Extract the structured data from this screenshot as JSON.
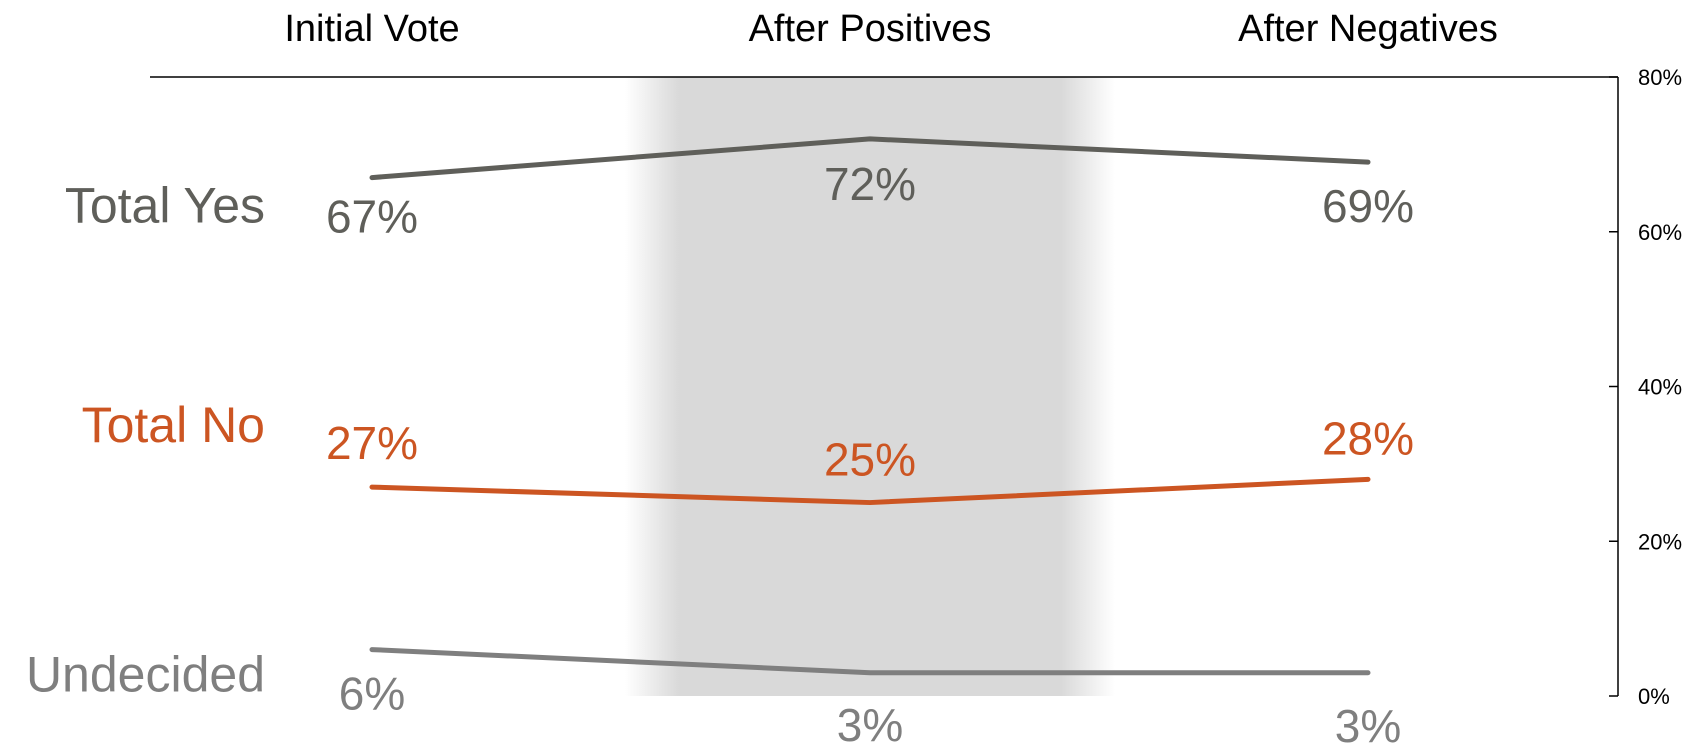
{
  "chart_data": {
    "type": "line",
    "categories": [
      "Initial Vote",
      "After Positives",
      "After Negatives"
    ],
    "ylim": [
      0,
      80
    ],
    "y_ticks": [
      0,
      20,
      40,
      60,
      80
    ],
    "y_tick_labels": [
      "0%",
      "20%",
      "40%",
      "60%",
      "80%"
    ],
    "y_axis_position": "right",
    "grid": false,
    "highlighted_category": "After Positives",
    "highlight_color": "#d9d9d9",
    "series": [
      {
        "name": "Total Yes",
        "values": [
          67,
          72,
          69
        ],
        "labels": [
          "67%",
          "72%",
          "69%"
        ],
        "color": "#5f5f5a"
      },
      {
        "name": "Total No",
        "values": [
          27,
          25,
          28
        ],
        "labels": [
          "27%",
          "25%",
          "28%"
        ],
        "color": "#cc5522"
      },
      {
        "name": "Undecided",
        "values": [
          6,
          3,
          3
        ],
        "labels": [
          "6%",
          "3%",
          "3%"
        ],
        "color": "#7f7f7f"
      }
    ]
  }
}
